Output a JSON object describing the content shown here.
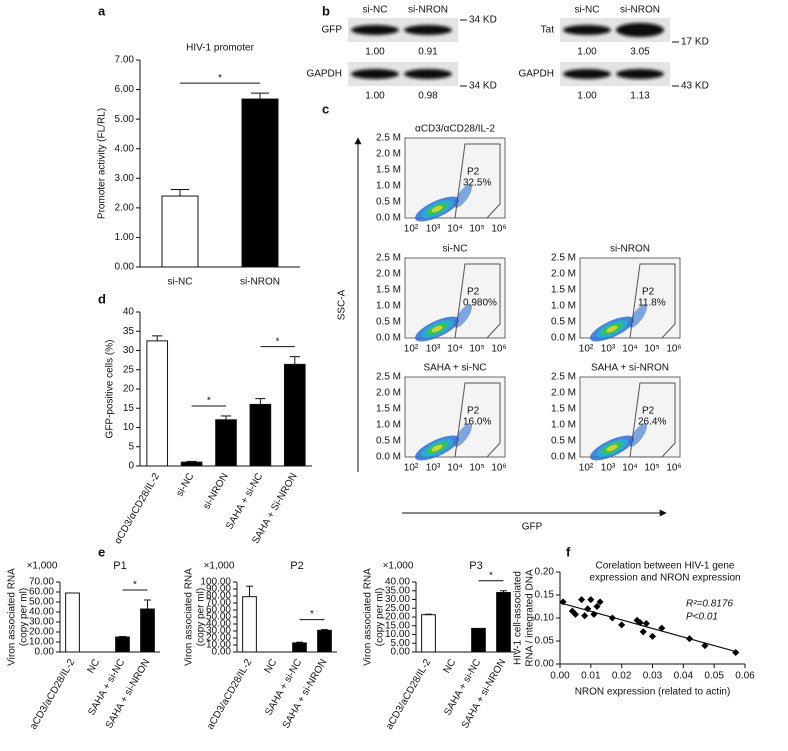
{
  "panel_labels": [
    "a",
    "b",
    "c",
    "d",
    "e",
    "f"
  ],
  "blots": [
    {
      "lanes": [
        "si-NC",
        "si-NRON"
      ],
      "rows": [
        {
          "protein": "GFP",
          "values": [
            "1.00",
            "0.91"
          ],
          "marker": "34 KD"
        },
        {
          "protein": "GAPDH",
          "values": [
            "1.00",
            "0.98"
          ],
          "marker": "34 KD"
        }
      ]
    },
    {
      "lanes": [
        "si-NC",
        "si-NRON"
      ],
      "rows": [
        {
          "protein": "Tat",
          "values": [
            "1.00",
            "3.05"
          ],
          "marker": "17 KD"
        },
        {
          "protein": "GAPDH",
          "values": [
            "1.00",
            "1.13"
          ],
          "marker": "43 KD"
        }
      ]
    }
  ],
  "flow": {
    "y_label": "SSC-A",
    "x_label": "GFP",
    "yticks": [
      "0.0 M",
      "0.5 M",
      "1.0 M",
      "1.5 M",
      "2.0 M",
      "2.5 M"
    ],
    "xticks": [
      "10²",
      "10³",
      "10⁴",
      "10⁵",
      "10⁶"
    ],
    "plots": [
      {
        "title": "αCD3/αCD28/IL-2",
        "gate": "P2",
        "percent": "32.5%"
      },
      {
        "title": "si-NC",
        "gate": "P2",
        "percent": "0.980%"
      },
      {
        "title": "si-NRON",
        "gate": "P2",
        "percent": "11.8%"
      },
      {
        "title": "SAHA + si-NC",
        "gate": "P2",
        "percent": "16.0%"
      },
      {
        "title": "SAHA + si-NRON",
        "gate": "P2",
        "percent": "26.4%"
      }
    ]
  },
  "chart_data": [
    {
      "type": "bar",
      "title": "HIV-1 promoter",
      "ylabel": [
        "Promoter activity (FL/RL)"
      ],
      "categories": [
        "si-NC",
        "si-NRON"
      ],
      "values": [
        2.4,
        5.68
      ],
      "errors": [
        0.22,
        0.2
      ],
      "colors": [
        "#ffffff",
        "#000000"
      ],
      "ylim": [
        0,
        7
      ],
      "yticks": [
        {
          "value": 0,
          "label": "0.00"
        },
        {
          "value": 1,
          "label": "1.00"
        },
        {
          "value": 2,
          "label": "2.00"
        },
        {
          "value": 3,
          "label": "3.00"
        },
        {
          "value": 4,
          "label": "4.00"
        },
        {
          "value": 5,
          "label": "5.00"
        },
        {
          "value": 6,
          "label": "6.00"
        },
        {
          "value": 7,
          "label": "7.00"
        }
      ],
      "significance": [
        {
          "label": "*",
          "pair": [
            "si-NC",
            "si-NRON"
          ]
        }
      ]
    },
    {
      "type": "bar",
      "ylabel": [
        "GFP-positive cells (%)"
      ],
      "categories": [
        "αCD3/αCD28/IL-2",
        "si-NC",
        "si-NRON",
        "SAHA + si-NC",
        "SAHA + Si-NRON"
      ],
      "values": [
        32.5,
        1,
        12,
        16,
        26.4
      ],
      "errors": [
        1.3,
        0.2,
        1,
        1.5,
        2
      ],
      "colors": [
        "#ffffff",
        "#000000",
        "#000000",
        "#000000",
        "#000000"
      ],
      "ylim": [
        0,
        40
      ],
      "yticks": [
        0,
        5,
        10,
        15,
        20,
        25,
        30,
        35,
        40
      ],
      "significance": [
        {
          "label": "*",
          "pair": [
            "si-NC",
            "si-NRON"
          ]
        },
        {
          "label": "*",
          "pair": [
            "SAHA + si-NC",
            "SAHA + Si-NRON"
          ]
        }
      ]
    },
    {
      "type": "bar",
      "title": "P1",
      "y_multiplier": "×1,000",
      "ylabel": [
        "Viron associated RNA",
        "(copy per ml)"
      ],
      "categories": [
        "aCD3/aCD28/IL-2",
        "NC",
        "SAHA + si-NC",
        "SAHA + si-NRON"
      ],
      "values": [
        59,
        0,
        15,
        43
      ],
      "errors": [
        null,
        null,
        0.5,
        9
      ],
      "colors": [
        "#ffffff",
        "#000000",
        "#000000",
        "#000000"
      ],
      "ylim": [
        0,
        70
      ],
      "yticks": [
        {
          "value": 0,
          "label": "0.00"
        },
        {
          "value": 10,
          "label": "10.00"
        },
        {
          "value": 20,
          "label": "20.00"
        },
        {
          "value": 30,
          "label": "30.00"
        },
        {
          "value": 40,
          "label": "40.00"
        },
        {
          "value": 50,
          "label": "50.00"
        },
        {
          "value": 60,
          "label": "60.00"
        },
        {
          "value": 70,
          "label": "70.00"
        }
      ],
      "significance": [
        {
          "label": "*",
          "pair": [
            "SAHA + si-NC",
            "SAHA + si-NRON"
          ]
        }
      ]
    },
    {
      "type": "bar",
      "title": "P2",
      "y_multiplier": "×1,000",
      "ylabel": [
        "Viron associated RNA",
        "(copy per ml)"
      ],
      "categories": [
        "aCD3/aCD28/IL-2",
        "NC",
        "SAHA + si-NC",
        "SAHA + si-NRON"
      ],
      "values": [
        79,
        0,
        13,
        31
      ],
      "errors": [
        15,
        null,
        1,
        1
      ],
      "colors": [
        "#ffffff",
        "#000000",
        "#000000",
        "#000000"
      ],
      "ylim": [
        0,
        100
      ],
      "yticks": [
        {
          "value": 0,
          "label": "0.00"
        },
        {
          "value": 10,
          "label": "10.00"
        },
        {
          "value": 20,
          "label": "20.00"
        },
        {
          "value": 30,
          "label": "30.00"
        },
        {
          "value": 40,
          "label": "40.00"
        },
        {
          "value": 50,
          "label": "50.00"
        },
        {
          "value": 60,
          "label": "60.00"
        },
        {
          "value": 70,
          "label": "70.00"
        },
        {
          "value": 80,
          "label": "80.00"
        },
        {
          "value": 90,
          "label": "90.00"
        },
        {
          "value": 100,
          "label": "100.00"
        }
      ],
      "significance": [
        {
          "label": "*",
          "pair": [
            "SAHA + si-NC",
            "SAHA + si-NRON"
          ]
        }
      ]
    },
    {
      "type": "bar",
      "title": "P3",
      "y_multiplier": "×1,000",
      "ylabel": [
        "Viron associated RNA",
        "(copy per ml)"
      ],
      "categories": [
        "aCD3/aCD28/IL-2",
        "NC",
        "SAHA + si-NC",
        "SAHA + si-NRON"
      ],
      "values": [
        21.3,
        0,
        13.5,
        34
      ],
      "errors": [
        0.3,
        null,
        null,
        1
      ],
      "colors": [
        "#ffffff",
        "#000000",
        "#000000",
        "#000000"
      ],
      "ylim": [
        0,
        40
      ],
      "yticks": [
        {
          "value": 0,
          "label": "0.00"
        },
        {
          "value": 5,
          "label": "5.00"
        },
        {
          "value": 10,
          "label": "10.00"
        },
        {
          "value": 15,
          "label": "15.00"
        },
        {
          "value": 20,
          "label": "20.00"
        },
        {
          "value": 25,
          "label": "25.00"
        },
        {
          "value": 30,
          "label": "30.00"
        },
        {
          "value": 35,
          "label": "35.00"
        },
        {
          "value": 40,
          "label": "40.00"
        }
      ],
      "significance": [
        {
          "label": "*",
          "pair": [
            "SAHA + si-NC",
            "SAHA + si-NRON"
          ]
        }
      ]
    },
    {
      "type": "scatter",
      "title": [
        "Corelation between HIV-1 gene",
        "expression and NRON expression"
      ],
      "ylabel": [
        "HIV-1 cell-associated",
        "RNA / integrated DNA"
      ],
      "xlabel": "NRON expression (related to actin)",
      "annotations": [
        "R²=0.8176",
        "P<0.01"
      ],
      "color": "#000000",
      "x": [
        0.001,
        0.004,
        0.005,
        0.007,
        0.008,
        0.009,
        0.01,
        0.011,
        0.012,
        0.013,
        0.017,
        0.02,
        0.025,
        0.026,
        0.027,
        0.028,
        0.03,
        0.033,
        0.042,
        0.047,
        0.057
      ],
      "values": [
        0.135,
        0.115,
        0.108,
        0.14,
        0.105,
        0.12,
        0.14,
        0.108,
        0.125,
        0.135,
        0.1,
        0.085,
        0.095,
        0.09,
        0.07,
        0.088,
        0.06,
        0.078,
        0.055,
        0.04,
        0.025
      ],
      "trendline": {
        "x": [
          0,
          0.057
        ],
        "values": [
          0.133,
          0.027
        ]
      },
      "xlim": [
        0,
        0.06
      ],
      "ylim": [
        0,
        0.2
      ],
      "xticks": [
        {
          "value": 0,
          "label": "0.00"
        },
        0.01,
        0.02,
        0.03,
        0.04,
        0.05,
        0.06
      ],
      "yticks": [
        {
          "value": 0,
          "label": "0.00"
        },
        0.05,
        {
          "value": 0.1,
          "label": "0.10"
        },
        0.15,
        {
          "value": 0.2,
          "label": "0.20"
        }
      ]
    }
  ]
}
